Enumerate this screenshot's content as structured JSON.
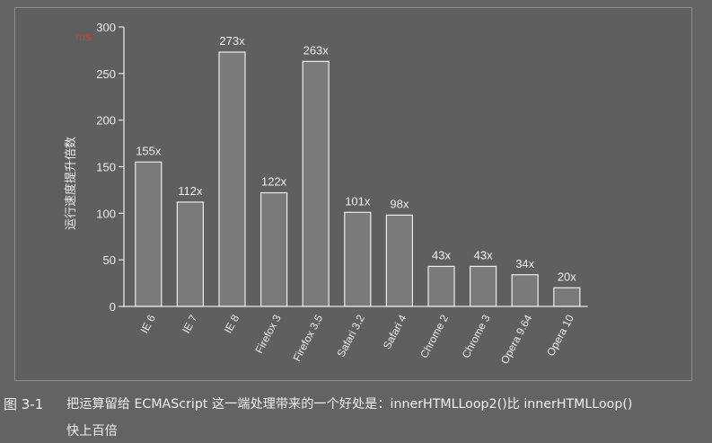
{
  "chart_data": {
    "type": "bar",
    "unit": "ms",
    "ylabel": "运行速度提升倍数",
    "ylim": [
      0,
      300
    ],
    "yticks": [
      0,
      50,
      100,
      150,
      200,
      250,
      300
    ],
    "grid": false,
    "categories": [
      "IE 6",
      "IE 7",
      "IE 8",
      "Firefox 3",
      "Firefox 3.5",
      "Safari 3.2",
      "Safari 4",
      "Chrome 2",
      "Chrome 3",
      "Opera 9.64",
      "Opera 10"
    ],
    "values": [
      155,
      112,
      273,
      122,
      263,
      101,
      98,
      43,
      43,
      34,
      20
    ],
    "data_labels": [
      "155x",
      "112x",
      "273x",
      "122x",
      "263x",
      "101x",
      "98x",
      "43x",
      "43x",
      "34x",
      "20x"
    ],
    "colors": {
      "bar_fill": "#7a7a7a",
      "bar_stroke": "#ededed",
      "unit_color": "#d23a2c"
    }
  },
  "caption": {
    "figure_number": "图 3-1",
    "line1": "把运算留给 ECMAScript 这一端处理带来的一个好处是：innerHTMLLoop2()比 innerHTMLLoop()",
    "line2": "快上百倍"
  }
}
